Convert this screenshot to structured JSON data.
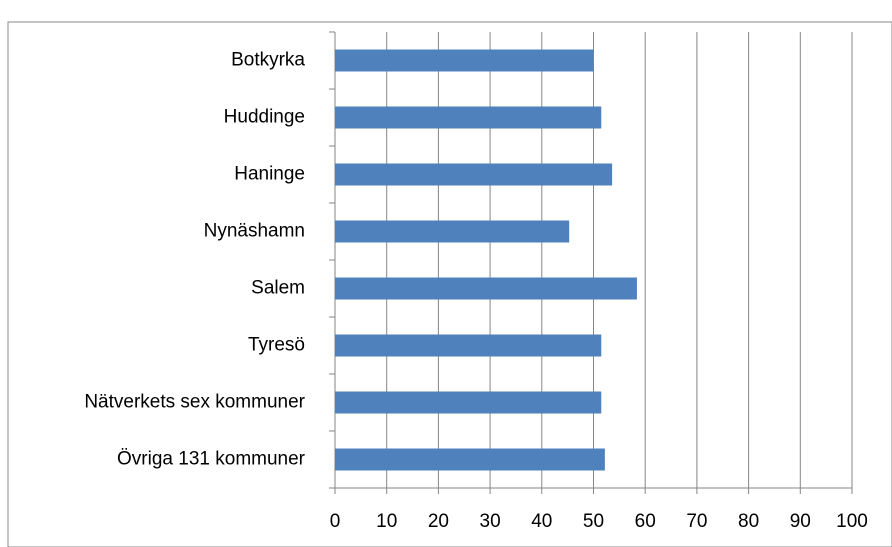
{
  "chart_data": {
    "type": "bar",
    "orientation": "horizontal",
    "categories": [
      "Botkyrka",
      "Huddinge",
      "Haninge",
      "Nynäshamn",
      "Salem",
      "Tyresö",
      "Nätverkets sex kommuner",
      "Övriga 131 kommuner"
    ],
    "values": [
      50,
      51.5,
      53.6,
      45.3,
      58.4,
      51.5,
      51.5,
      52.2
    ],
    "color": "#4f81bd",
    "xlim": [
      0,
      100
    ],
    "xticks": [
      0,
      10,
      20,
      30,
      40,
      50,
      60,
      70,
      80,
      90,
      100
    ],
    "grid": true
  }
}
